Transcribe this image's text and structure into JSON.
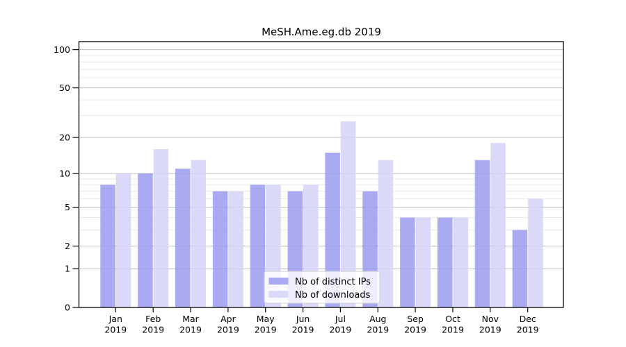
{
  "chart_data": {
    "type": "bar",
    "title": "MeSH.Ame.eg.db 2019",
    "categories": [
      "Jan",
      "Feb",
      "Mar",
      "Apr",
      "May",
      "Jun",
      "Jul",
      "Aug",
      "Sep",
      "Oct",
      "Nov",
      "Dec"
    ],
    "category_year": "2019",
    "series": [
      {
        "name": "Nb of distinct IPs",
        "color": "#9b9bf0",
        "values": [
          8,
          10,
          11,
          7,
          8,
          7,
          15,
          7,
          4,
          4,
          13,
          3
        ]
      },
      {
        "name": "Nb of downloads",
        "color": "#d3d3f7",
        "values": [
          10,
          16,
          13,
          7,
          8,
          8,
          27,
          13,
          4,
          4,
          18,
          6
        ]
      }
    ],
    "yscale": "log1p",
    "ylim": [
      0,
      115.6
    ],
    "yticks": [
      0,
      1,
      2,
      5,
      10,
      20,
      50,
      100
    ],
    "yticks_minor": [
      3,
      4,
      6,
      7,
      8,
      9,
      30,
      40,
      60,
      70,
      80,
      90
    ],
    "xlabel": "",
    "ylabel": "",
    "grid": true,
    "legend_position": "lower center"
  },
  "colors": {
    "grid_major": "#bdbdbd",
    "grid_minor": "#e9e9e9",
    "axis": "#000000",
    "legend_border": "#cccccc",
    "legend_bg": "#ffffff"
  }
}
